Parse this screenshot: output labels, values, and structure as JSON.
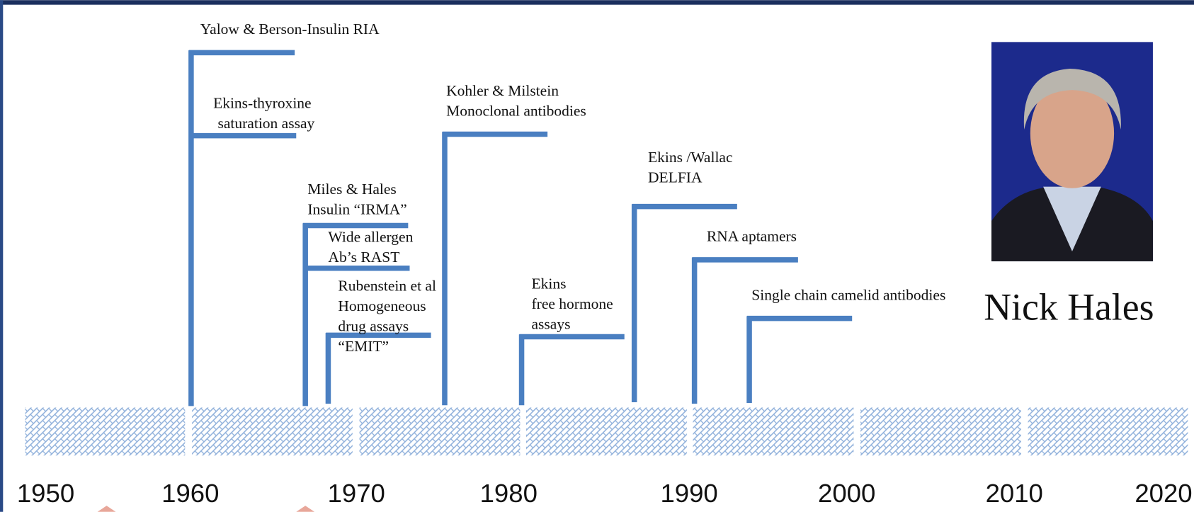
{
  "events": [
    {
      "labels": [
        {
          "lines": [
            "Yalow & Berson-Insulin RIA"
          ]
        },
        {
          "lines": [
            "Ekins-thyroxine",
            "saturation assay"
          ]
        }
      ]
    },
    {
      "labels": [
        {
          "lines": [
            "Miles & Hales",
            "Insulin “IRMA”"
          ]
        },
        {
          "lines": [
            "Wide allergen",
            "Ab’s RAST"
          ]
        }
      ]
    },
    {
      "labels": [
        {
          "lines": [
            "Rubenstein et al",
            "Homogeneous",
            "drug assays",
            "“EMIT”"
          ]
        }
      ]
    },
    {
      "labels": [
        {
          "lines": [
            "Kohler & Milstein",
            "Monoclonal antibodies"
          ]
        }
      ]
    },
    {
      "labels": [
        {
          "lines": [
            "Ekins",
            "free hormone",
            "assays"
          ]
        }
      ]
    },
    {
      "labels": [
        {
          "lines": [
            "Ekins /Wallac",
            "DELFIA"
          ]
        }
      ]
    },
    {
      "labels": [
        {
          "lines": [
            "RNA aptamers"
          ]
        }
      ]
    },
    {
      "labels": [
        {
          "lines": [
            "Single chain camelid antibodies"
          ]
        }
      ]
    }
  ],
  "axis": {
    "labels": [
      "1950",
      "1960",
      "1970",
      "1980",
      "1990",
      "2000",
      "2010",
      "2020"
    ]
  },
  "photo_caption": "Nick Hales"
}
